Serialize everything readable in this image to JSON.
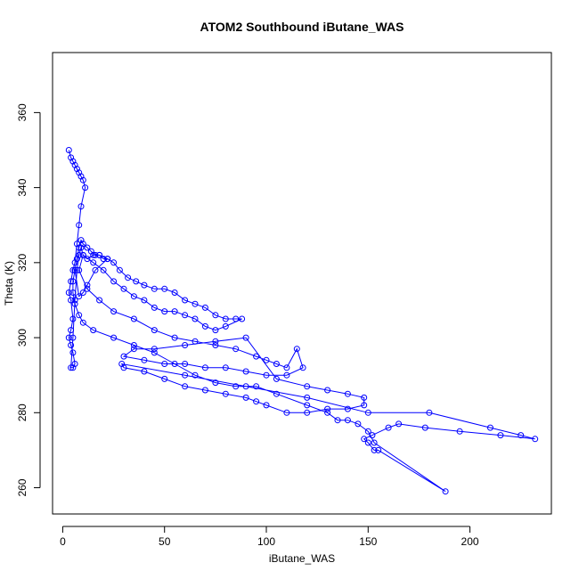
{
  "chart_data": {
    "type": "line",
    "title": "ATOM2 Southbound iButane_WAS",
    "xlabel": "iButane_WAS",
    "ylabel": "Theta (K)",
    "xlim": [
      -5,
      240
    ],
    "ylim": [
      253,
      376
    ],
    "xticks": [
      0,
      50,
      100,
      150,
      200
    ],
    "yticks": [
      260,
      280,
      300,
      320,
      340,
      360
    ],
    "grid": false,
    "series": [
      {
        "color": "#0000ff",
        "marker": "open-circle",
        "x": [
          3,
          4,
          5,
          6,
          7,
          8,
          9,
          10,
          11,
          9,
          8,
          7,
          6,
          5,
          4,
          3,
          4,
          5,
          4,
          3,
          4,
          5,
          6,
          5,
          4,
          5,
          6,
          7,
          8,
          9,
          10,
          12,
          15,
          18,
          22,
          25,
          28,
          32,
          36,
          40,
          45,
          50,
          55,
          60,
          65,
          70,
          75,
          80,
          85,
          88,
          80,
          75,
          70,
          65,
          60,
          55,
          50,
          45,
          40,
          35,
          30,
          25,
          20,
          15,
          10,
          8,
          12,
          18,
          25,
          35,
          45,
          55,
          65,
          75,
          85,
          95,
          100,
          105,
          110,
          115,
          118,
          110,
          100,
          90,
          80,
          70,
          60,
          50,
          40,
          30,
          35,
          45,
          60,
          75,
          90,
          105,
          120,
          130,
          140,
          148,
          148,
          140,
          130,
          120,
          110,
          100,
          95,
          90,
          80,
          70,
          60,
          50,
          40,
          30,
          29,
          60,
          90,
          120,
          150,
          180,
          210,
          225,
          232,
          215,
          195,
          178,
          165,
          160,
          152,
          148,
          150,
          153,
          155,
          188,
          153,
          150,
          145,
          140,
          135,
          130,
          120,
          105,
          95,
          85,
          75,
          65,
          55,
          45,
          35,
          25,
          15,
          10,
          8,
          6,
          5,
          5,
          6,
          7,
          8,
          9,
          10,
          12,
          14,
          16,
          18,
          20,
          22,
          16,
          12,
          10,
          8,
          6
        ],
        "y": [
          350,
          348,
          347,
          346,
          345,
          344,
          343,
          342,
          340,
          335,
          330,
          325,
          320,
          318,
          315,
          312,
          310,
          305,
          302,
          300,
          298,
          296,
          293,
          292,
          292,
          300,
          310,
          318,
          322,
          324,
          322,
          321,
          322,
          322,
          321,
          320,
          318,
          316,
          315,
          314,
          313,
          313,
          312,
          310,
          309,
          308,
          306,
          305,
          305,
          305,
          303,
          302,
          303,
          305,
          306,
          307,
          307,
          308,
          310,
          311,
          313,
          315,
          318,
          320,
          322,
          318,
          313,
          310,
          307,
          305,
          302,
          300,
          299,
          298,
          297,
          295,
          294,
          293,
          292,
          297,
          292,
          290,
          290,
          291,
          292,
          292,
          293,
          293,
          294,
          295,
          297,
          297,
          298,
          299,
          300,
          289,
          287,
          286,
          285,
          284,
          282,
          281,
          281,
          280,
          280,
          282,
          283,
          284,
          285,
          286,
          287,
          289,
          291,
          292,
          293,
          290,
          287,
          284,
          280,
          280,
          276,
          274,
          273,
          274,
          275,
          276,
          277,
          276,
          274,
          273,
          272,
          270,
          270,
          259,
          272,
          275,
          277,
          278,
          278,
          280,
          282,
          285,
          287,
          287,
          288,
          290,
          293,
          296,
          298,
          300,
          302,
          304,
          306,
          309,
          312,
          315,
          318,
          321,
          324,
          326,
          325,
          324,
          323,
          322,
          322,
          321,
          321,
          318,
          314,
          312,
          311,
          318
        ]
      }
    ]
  }
}
